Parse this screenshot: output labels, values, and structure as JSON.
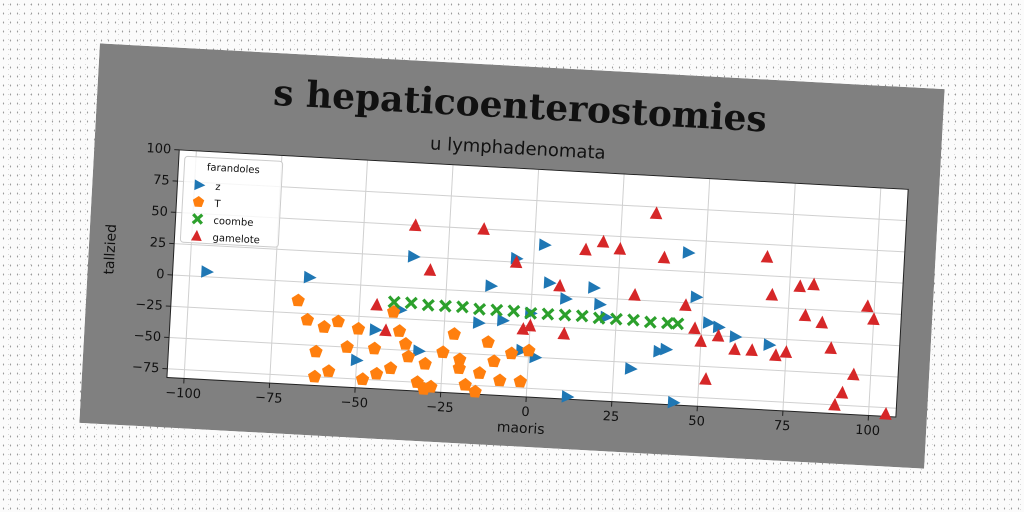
{
  "chart_data": {
    "type": "scatter",
    "title": "s hepaticoenterostomies",
    "subtitle": "u lymphadenomata",
    "xlabel": "maoris",
    "ylabel": "tallzied",
    "xlim": [
      -105,
      108
    ],
    "ylim": [
      -82,
      100
    ],
    "xticks": [
      -100,
      -75,
      -50,
      -25,
      0,
      25,
      50,
      75,
      100
    ],
    "yticks": [
      -75,
      -50,
      -25,
      0,
      25,
      50,
      75,
      100
    ],
    "grid": true,
    "legend": {
      "title": "farandoles",
      "placement": "top-left"
    },
    "colors": {
      "figure_bg": "#808080",
      "plot_bg": "#ffffff",
      "z": "#1f77b4",
      "T": "#ff7f0e",
      "coombe": "#2ca02c",
      "gamelote": "#d62728"
    },
    "series": [
      {
        "name": "z",
        "marker": "triangle-right",
        "color": "#1f77b4",
        "points": [
          [
            -95,
            4
          ],
          [
            -65,
            4
          ],
          [
            -50,
            -60
          ],
          [
            -35,
            25
          ],
          [
            -38,
            -18
          ],
          [
            -32,
            -50
          ],
          [
            -15,
            -25
          ],
          [
            -12,
            5
          ],
          [
            -8,
            -22
          ],
          [
            -5,
            28
          ],
          [
            -2,
            -45
          ],
          [
            0,
            -15
          ],
          [
            2,
            -50
          ],
          [
            5,
            10
          ],
          [
            3,
            40
          ],
          [
            10,
            -2
          ],
          [
            12,
            -80
          ],
          [
            18,
            8
          ],
          [
            20,
            -5
          ],
          [
            22,
            -15
          ],
          [
            30,
            -55
          ],
          [
            38,
            -40
          ],
          [
            40,
            -38
          ],
          [
            43,
            -80
          ],
          [
            45,
            40
          ],
          [
            48,
            5
          ],
          [
            52,
            -15
          ],
          [
            55,
            -18
          ],
          [
            60,
            -25
          ],
          [
            70,
            -30
          ],
          [
            -45,
            -35
          ]
        ]
      },
      {
        "name": "T",
        "marker": "pentagon",
        "color": "#ff7f0e",
        "points": [
          [
            -68,
            -15
          ],
          [
            -65,
            -30
          ],
          [
            -62,
            -55
          ],
          [
            -60,
            -35
          ],
          [
            -58,
            -70
          ],
          [
            -56,
            -30
          ],
          [
            -53,
            -50
          ],
          [
            -50,
            -35
          ],
          [
            -48,
            -75
          ],
          [
            -44,
            -70
          ],
          [
            -40,
            -20
          ],
          [
            -38,
            -35
          ],
          [
            -35,
            -55
          ],
          [
            -32,
            -75
          ],
          [
            -30,
            -80
          ],
          [
            -28,
            -78
          ],
          [
            -25,
            -50
          ],
          [
            -22,
            -35
          ],
          [
            -20,
            -55
          ],
          [
            -18,
            -75
          ],
          [
            -15,
            -80
          ],
          [
            -12,
            -40
          ],
          [
            -10,
            -55
          ],
          [
            -8,
            -70
          ],
          [
            -5,
            -48
          ],
          [
            -2,
            -70
          ],
          [
            0,
            -45
          ],
          [
            -40,
            -65
          ],
          [
            -62,
            -75
          ],
          [
            -45,
            -50
          ],
          [
            -36,
            -45
          ],
          [
            -30,
            -60
          ],
          [
            -20,
            -62
          ],
          [
            -14,
            -65
          ]
        ]
      },
      {
        "name": "coombe",
        "marker": "x",
        "color": "#2ca02c",
        "points": [
          [
            -40,
            -12
          ],
          [
            -30,
            -13
          ],
          [
            -20,
            -13
          ],
          [
            -10,
            -14
          ],
          [
            0,
            -15
          ],
          [
            10,
            -15
          ],
          [
            20,
            -16
          ],
          [
            30,
            -16
          ],
          [
            40,
            -17
          ],
          [
            -35,
            -12
          ],
          [
            -25,
            -13
          ],
          [
            -15,
            -14
          ],
          [
            -5,
            -14
          ],
          [
            5,
            -15
          ],
          [
            15,
            -15
          ],
          [
            25,
            -16
          ],
          [
            35,
            -17
          ],
          [
            43,
            -17
          ]
        ]
      },
      {
        "name": "gamelote",
        "marker": "triangle-up",
        "color": "#d62728",
        "points": [
          [
            -45,
            -15
          ],
          [
            -42,
            -35
          ],
          [
            -35,
            50
          ],
          [
            -30,
            15
          ],
          [
            -15,
            50
          ],
          [
            -5,
            25
          ],
          [
            -2,
            -28
          ],
          [
            0,
            -25
          ],
          [
            8,
            8
          ],
          [
            10,
            -30
          ],
          [
            15,
            38
          ],
          [
            20,
            45
          ],
          [
            25,
            40
          ],
          [
            30,
            4
          ],
          [
            35,
            70
          ],
          [
            38,
            35
          ],
          [
            45,
            -2
          ],
          [
            48,
            -20
          ],
          [
            50,
            -30
          ],
          [
            52,
            -60
          ],
          [
            55,
            -25
          ],
          [
            60,
            -35
          ],
          [
            65,
            -35
          ],
          [
            68,
            40
          ],
          [
            70,
            10
          ],
          [
            72,
            -38
          ],
          [
            75,
            -35
          ],
          [
            78,
            18
          ],
          [
            80,
            -5
          ],
          [
            82,
            20
          ],
          [
            85,
            -10
          ],
          [
            88,
            -30
          ],
          [
            90,
            -75
          ],
          [
            92,
            -65
          ],
          [
            95,
            -50
          ],
          [
            98,
            5
          ],
          [
            100,
            -5
          ],
          [
            105,
            -80
          ]
        ]
      }
    ]
  }
}
